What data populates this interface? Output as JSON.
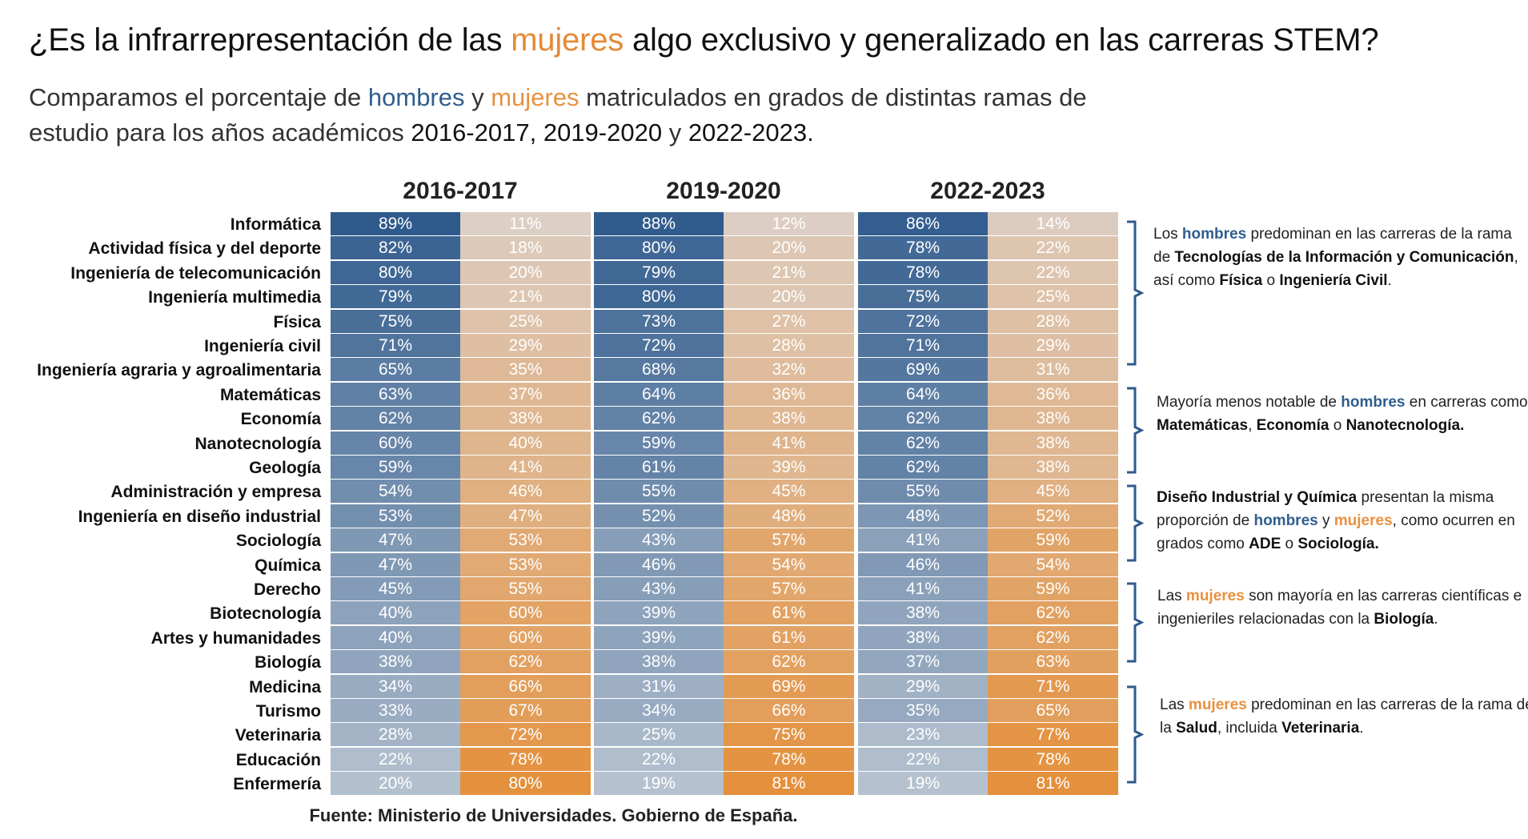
{
  "title": {
    "pre": "¿Es la infrarrepresentación de las ",
    "highlight": "mujeres",
    "post": " algo exclusivo y generalizado en las carreras STEM?"
  },
  "subtitle": {
    "line1_a": "Comparamos el porcentaje de ",
    "men": "hombres",
    "line1_b": " y ",
    "women": "mujeres",
    "line1_c": " matriculados en grados de distintas ramas de",
    "line2_a": "estudio para los años académicos ",
    "y1": "2016-2017",
    "sep1": ", ",
    "y2": "2019-2020",
    "sep2": " y ",
    "y3": "2022-2023",
    "end": "."
  },
  "chart_data": {
    "type": "table",
    "title": "¿Es la infrarrepresentación de las mujeres algo exclusivo y generalizado en las carreras STEM?",
    "years": [
      "2016-2017",
      "2019-2020",
      "2022-2023"
    ],
    "series": [
      "hombres",
      "mujeres"
    ],
    "categories": [
      "Informática",
      "Actividad física y del deporte",
      "Ingeniería de telecomunicación",
      "Ingeniería multimedia",
      "Física",
      "Ingeniería civil",
      "Ingeniería agraria y agroalimentaria",
      "Matemáticas",
      "Economía",
      "Nanotecnología",
      "Geología",
      "Administración y empresa",
      "Ingeniería en diseño industrial",
      "Sociología",
      "Química",
      "Derecho",
      "Biotecnología",
      "Artes y humanidades",
      "Biología",
      "Medicina",
      "Turismo",
      "Veterinaria",
      "Educación",
      "Enfermería"
    ],
    "men_pct": [
      [
        89,
        88,
        86
      ],
      [
        82,
        80,
        78
      ],
      [
        80,
        79,
        78
      ],
      [
        79,
        80,
        75
      ],
      [
        75,
        73,
        72
      ],
      [
        71,
        72,
        71
      ],
      [
        65,
        68,
        69
      ],
      [
        63,
        64,
        64
      ],
      [
        62,
        62,
        62
      ],
      [
        60,
        59,
        62
      ],
      [
        59,
        61,
        62
      ],
      [
        54,
        55,
        55
      ],
      [
        53,
        52,
        48
      ],
      [
        47,
        43,
        41
      ],
      [
        47,
        46,
        46
      ],
      [
        45,
        43,
        41
      ],
      [
        40,
        39,
        38
      ],
      [
        40,
        39,
        38
      ],
      [
        38,
        38,
        37
      ],
      [
        34,
        31,
        29
      ],
      [
        33,
        34,
        35
      ],
      [
        28,
        25,
        23
      ],
      [
        22,
        22,
        22
      ],
      [
        20,
        19,
        19
      ]
    ],
    "women_pct": [
      [
        11,
        12,
        14
      ],
      [
        18,
        20,
        22
      ],
      [
        20,
        21,
        22
      ],
      [
        21,
        20,
        25
      ],
      [
        25,
        27,
        28
      ],
      [
        29,
        28,
        29
      ],
      [
        35,
        32,
        31
      ],
      [
        37,
        36,
        36
      ],
      [
        38,
        38,
        38
      ],
      [
        40,
        41,
        38
      ],
      [
        41,
        39,
        38
      ],
      [
        46,
        45,
        45
      ],
      [
        47,
        48,
        52
      ],
      [
        53,
        57,
        59
      ],
      [
        53,
        54,
        54
      ],
      [
        55,
        57,
        59
      ],
      [
        60,
        61,
        62
      ],
      [
        60,
        61,
        62
      ],
      [
        62,
        62,
        63
      ],
      [
        66,
        69,
        71
      ],
      [
        67,
        66,
        65
      ],
      [
        72,
        75,
        77
      ],
      [
        78,
        78,
        78
      ],
      [
        80,
        81,
        81
      ]
    ],
    "suffix": "%"
  },
  "colors": {
    "men_dark": "#2e5a8c",
    "men_light": "#b5c1cf",
    "women_light": "#dccfc6",
    "women_dark": "#e4903c"
  },
  "annotations": [
    {
      "parts": [
        {
          "t": "Los ",
          "s": ""
        },
        {
          "t": "hombres",
          "s": "men"
        },
        {
          "t": " predominan en las carreras de la rama de ",
          "s": ""
        },
        {
          "t": "Tecnologías de la Información y Comunicación",
          "s": "b"
        },
        {
          "t": ", así como ",
          "s": ""
        },
        {
          "t": "Física",
          "s": "b"
        },
        {
          "t": " o ",
          "s": ""
        },
        {
          "t": "Ingeniería Civil",
          "s": "b"
        },
        {
          "t": ".",
          "s": ""
        }
      ]
    },
    {
      "parts": [
        {
          "t": "Mayoría menos notable de ",
          "s": ""
        },
        {
          "t": "hombres",
          "s": "men"
        },
        {
          "t": " en carreras como ",
          "s": ""
        },
        {
          "t": "Matemáticas",
          "s": "b"
        },
        {
          "t": ", ",
          "s": ""
        },
        {
          "t": "Economía",
          "s": "b"
        },
        {
          "t": " o ",
          "s": ""
        },
        {
          "t": "Nanotecnología.",
          "s": "b"
        }
      ]
    },
    {
      "parts": [
        {
          "t": "Diseño Industrial y Química",
          "s": "b"
        },
        {
          "t": " presentan la misma proporción de ",
          "s": ""
        },
        {
          "t": "hombres",
          "s": "men"
        },
        {
          "t": " y ",
          "s": ""
        },
        {
          "t": "mujeres",
          "s": "women"
        },
        {
          "t": ", como ocurren en grados como ",
          "s": ""
        },
        {
          "t": "ADE",
          "s": "b"
        },
        {
          "t": " o ",
          "s": ""
        },
        {
          "t": "Sociología.",
          "s": "b"
        }
      ]
    },
    {
      "parts": [
        {
          "t": "Las ",
          "s": ""
        },
        {
          "t": "mujeres",
          "s": "women"
        },
        {
          "t": " son mayoría en las carreras científicas e ingenieriles relacionadas con la ",
          "s": ""
        },
        {
          "t": "Biología",
          "s": "b"
        },
        {
          "t": ".",
          "s": ""
        }
      ]
    },
    {
      "parts": [
        {
          "t": "Las ",
          "s": ""
        },
        {
          "t": "mujeres",
          "s": "women"
        },
        {
          "t": " predominan en las carreras de la rama de la ",
          "s": ""
        },
        {
          "t": "Salud",
          "s": "b"
        },
        {
          "t": ", incluida ",
          "s": ""
        },
        {
          "t": "Veterinaria",
          "s": "b"
        },
        {
          "t": ".",
          "s": ""
        }
      ]
    }
  ],
  "source": "Fuente: Ministerio de Universidades. Gobierno de España."
}
